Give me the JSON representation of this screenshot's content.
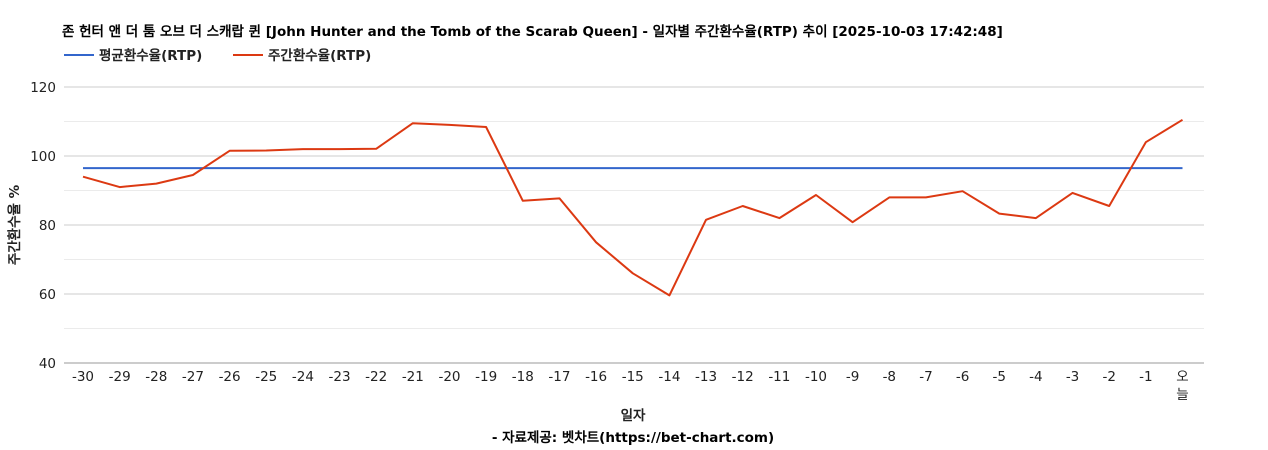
{
  "chart_data": {
    "type": "line",
    "title": "존 헌터 앤 더 툼 오브 더 스캐랍 퀸 [John Hunter and the Tomb of the Scarab Queen] - 일자별 주간환수율(RTP) 추이 [2025-10-03 17:42:48]",
    "xlabel": "일자",
    "ylabel": "주간환수율 %",
    "credit": "- 자료제공: 벳차트(https://bet-chart.com)",
    "ylim": [
      40,
      120
    ],
    "yticks": [
      "40",
      "60",
      "80",
      "100",
      "120"
    ],
    "grid": true,
    "legend_position": "top-left",
    "categories": [
      "-30",
      "-29",
      "-28",
      "-27",
      "-26",
      "-25",
      "-24",
      "-23",
      "-22",
      "-21",
      "-20",
      "-19",
      "-18",
      "-17",
      "-16",
      "-15",
      "-14",
      "-13",
      "-12",
      "-11",
      "-10",
      "-9",
      "-8",
      "-7",
      "-6",
      "-5",
      "-4",
      "-3",
      "-2",
      "-1",
      "오늘"
    ],
    "series": [
      {
        "name": "평균환수율(RTP)",
        "color": "#3366cc",
        "values": [
          96.5,
          96.5,
          96.5,
          96.5,
          96.5,
          96.5,
          96.5,
          96.5,
          96.5,
          96.5,
          96.5,
          96.5,
          96.5,
          96.5,
          96.5,
          96.5,
          96.5,
          96.5,
          96.5,
          96.5,
          96.5,
          96.5,
          96.5,
          96.5,
          96.5,
          96.5,
          96.5,
          96.5,
          96.5,
          96.5,
          96.5
        ]
      },
      {
        "name": "주간환수율(RTP)",
        "color": "#dc3912",
        "values": [
          94,
          91,
          92,
          94.5,
          101.5,
          101.6,
          102,
          102,
          102.1,
          109.5,
          109,
          108.4,
          87,
          87.7,
          75,
          66,
          59.6,
          81.5,
          85.5,
          82,
          88.7,
          80.8,
          88,
          88,
          89.8,
          83.3,
          82,
          89.3,
          85.5,
          104,
          110.5
        ]
      }
    ]
  }
}
